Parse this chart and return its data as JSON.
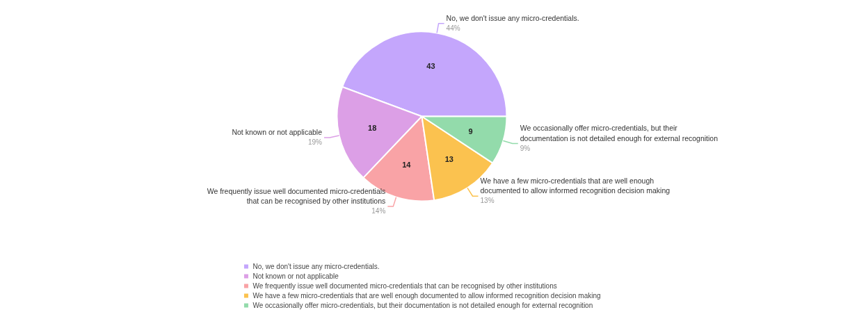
{
  "chart_data": {
    "type": "pie",
    "categories": [
      "No, we don't issue any micro-credentials.",
      "Not known or not applicable",
      "We frequently issue well documented micro-credentials that can be recognised by other institutions",
      "We have a few micro-credentials that are well enough documented to allow informed recognition decision making",
      "We occasionally offer micro-credentials, but their documentation is not detailed enough for external recognition"
    ],
    "values": [
      43,
      18,
      14,
      13,
      9
    ],
    "colors": [
      "#c4a6fc",
      "#dc9fe6",
      "#f9a3a6",
      "#fbc24f",
      "#93dbab"
    ],
    "data_labels": true,
    "annotations": [
      "44%",
      "19%",
      "14%",
      "13%",
      "9%"
    ],
    "legend": "bottom"
  }
}
